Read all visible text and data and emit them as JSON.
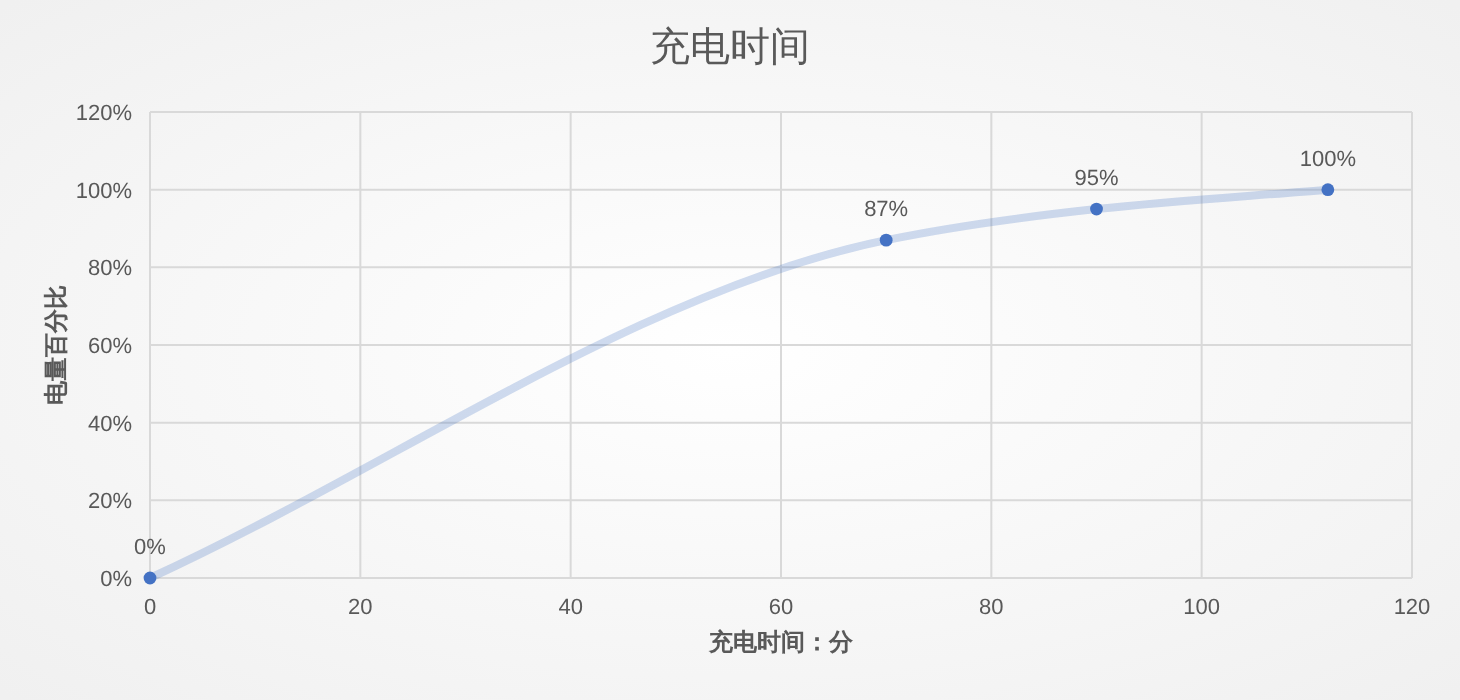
{
  "chart_data": {
    "type": "line",
    "title": "充电时间",
    "xlabel": "充电时间：分",
    "ylabel": "电量百分比",
    "x": [
      0,
      70,
      90,
      112
    ],
    "series": [
      {
        "color": "#4472c4",
        "values": [
          0,
          87,
          95,
          100
        ],
        "value_labels": [
          "0%",
          "87%",
          "95%",
          "100%"
        ]
      }
    ],
    "xlim": [
      0,
      120
    ],
    "xticks": [
      0,
      20,
      40,
      60,
      80,
      100,
      120
    ],
    "ylim": [
      0,
      120
    ],
    "yticks": [
      {
        "value": 0,
        "label": "0%"
      },
      {
        "value": 20,
        "label": "20%"
      },
      {
        "value": 40,
        "label": "40%"
      },
      {
        "value": 60,
        "label": "60%"
      },
      {
        "value": 80,
        "label": "80%"
      },
      {
        "value": 100,
        "label": "100%"
      },
      {
        "value": 120,
        "label": "120%"
      }
    ],
    "grid": true,
    "marker": "circle"
  }
}
